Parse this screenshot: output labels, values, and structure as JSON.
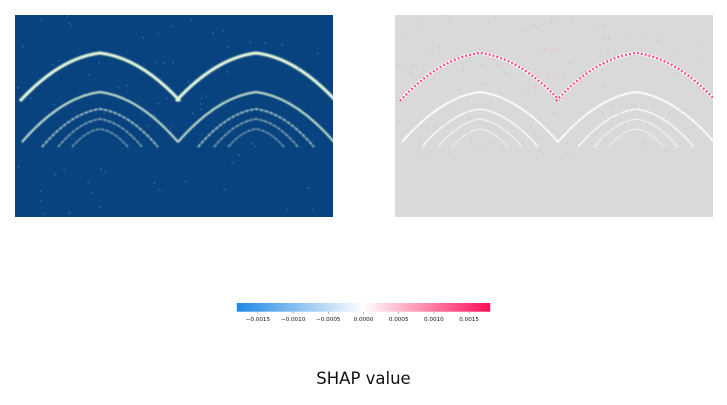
{
  "chart_data": {
    "type": "heatmap",
    "panels": [
      {
        "name": "",
        "colormap": "GnBu_r",
        "background": "#08427f"
      },
      {
        "name": "",
        "colormap": "shap red-blue",
        "background": "#d9d9d9"
      }
    ],
    "colorbar": {
      "min": -0.0018,
      "max": 0.0018,
      "ticks": [
        -0.0015,
        -0.001,
        -0.0005,
        0.0,
        0.0005,
        0.001,
        0.0015
      ],
      "tick_labels": [
        "−0.0015",
        "−0.0010",
        "−0.0005",
        "0.0000",
        "0.0005",
        "0.0010",
        "0.0015"
      ],
      "label": "SHAP value",
      "colors": {
        "negative": "#1e88e5",
        "zero": "#ffffff",
        "positive": "#ff0d57"
      }
    }
  }
}
